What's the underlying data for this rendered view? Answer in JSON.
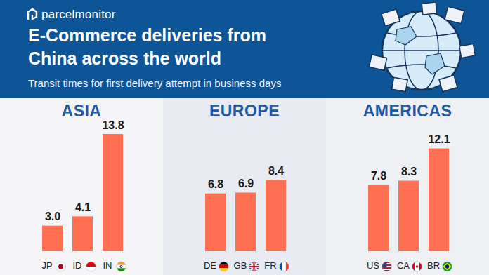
{
  "brand": "parcelmonitor",
  "title": "E-Commerce deliveries from China across the world",
  "subtitle": "Transit times for first delivery attempt in business days",
  "chart_data": [
    {
      "type": "bar",
      "title": "ASIA",
      "categories": [
        "JP",
        "ID",
        "IN"
      ],
      "values": [
        3.0,
        4.1,
        13.8
      ],
      "value_labels": [
        "3.0",
        "4.1",
        "13.8"
      ],
      "color": "#ff6f52",
      "data_labels": true,
      "tick_labels": "x"
    },
    {
      "type": "bar",
      "title": "EUROPE",
      "categories": [
        "DE",
        "GB",
        "FR"
      ],
      "values": [
        6.8,
        6.9,
        8.4
      ],
      "value_labels": [
        "6.8",
        "6.9",
        "8.4"
      ],
      "color": "#ff6f52",
      "data_labels": true,
      "tick_labels": "x"
    },
    {
      "type": "bar",
      "title": "AMERICAS",
      "categories": [
        "US",
        "CA",
        "BR"
      ],
      "values": [
        7.8,
        8.3,
        12.1
      ],
      "value_labels": [
        "7.8",
        "8.3",
        "12.1"
      ],
      "color": "#ff6f52",
      "data_labels": true,
      "tick_labels": "x"
    }
  ]
}
